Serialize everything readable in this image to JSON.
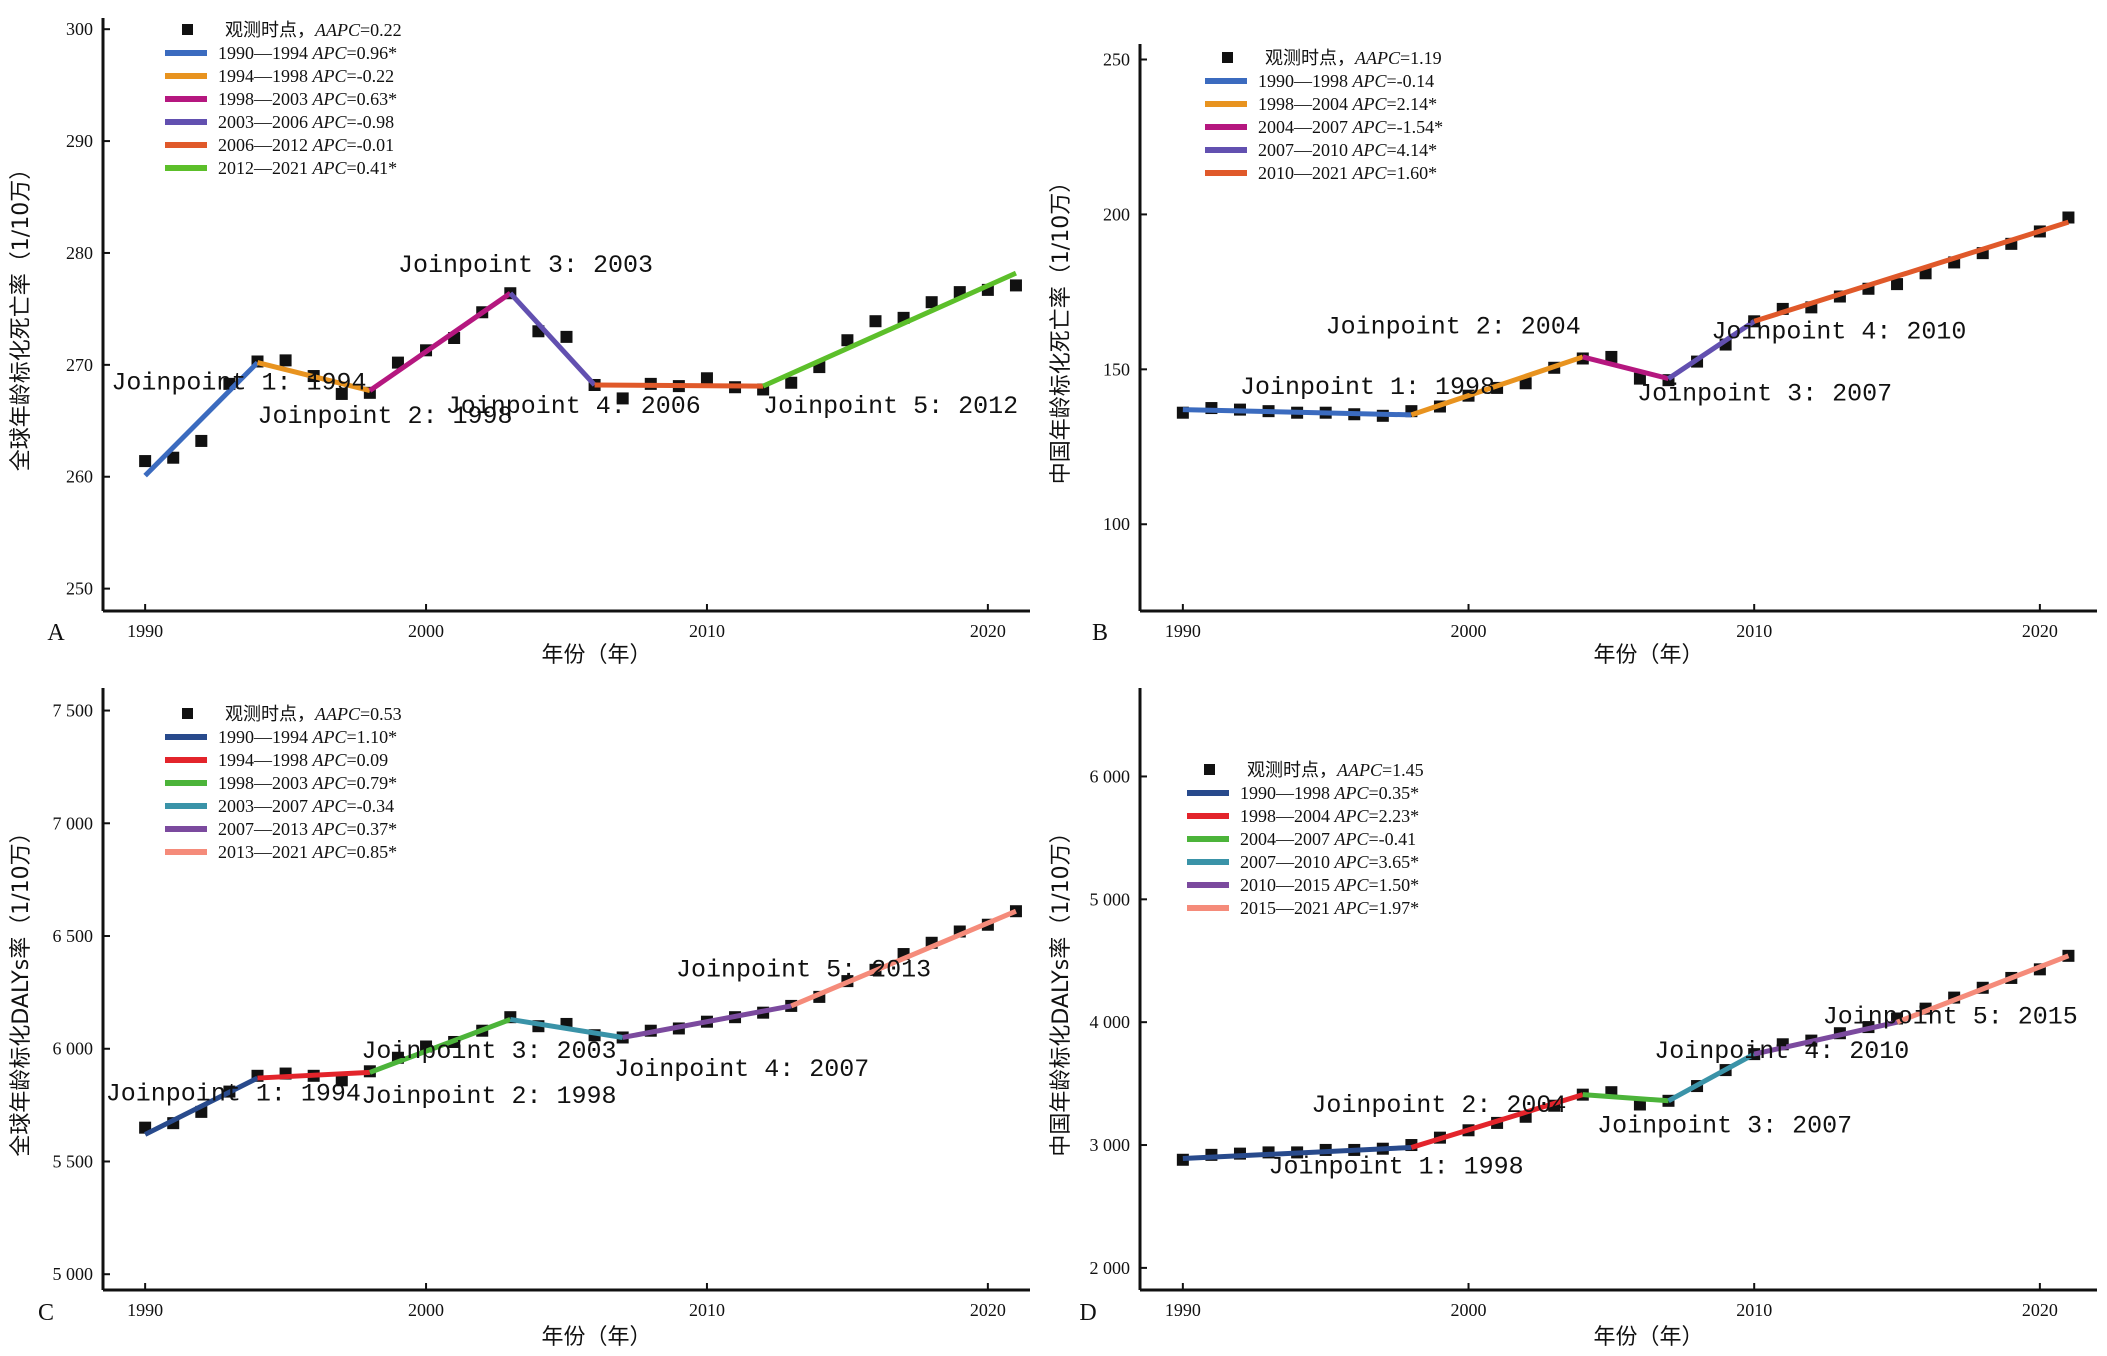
{
  "chart_data": [
    {
      "type": "line",
      "panel_label": "A",
      "title": "",
      "xlabel": "年份（年）",
      "ylabel": "全球年龄标化死亡率（1/10万）",
      "xlim": [
        1988.5,
        2021.5
      ],
      "ylim": [
        248,
        301
      ],
      "xticks": [
        1990,
        2000,
        2010,
        2020
      ],
      "yticks": [
        250,
        260,
        270,
        280,
        290,
        300
      ],
      "ytick_labels": [
        "250",
        "260",
        "270",
        "280",
        "290",
        "300"
      ],
      "legend_position": "top-left",
      "observed": {
        "name": "观测时点，",
        "stat_label": "AAPC",
        "stat_value": "=0.22",
        "x": [
          1990,
          1991,
          1992,
          1993,
          1994,
          1995,
          1996,
          1997,
          1998,
          1999,
          2000,
          2001,
          2002,
          2003,
          2004,
          2005,
          2006,
          2007,
          2008,
          2009,
          2010,
          2011,
          2012,
          2013,
          2014,
          2015,
          2016,
          2017,
          2018,
          2019,
          2020,
          2021
        ],
        "y": [
          261.4,
          261.7,
          263.2,
          268.3,
          270.3,
          270.4,
          269.0,
          267.4,
          267.5,
          270.2,
          271.3,
          272.4,
          274.7,
          276.4,
          273.0,
          272.5,
          268.2,
          267.0,
          268.3,
          268.1,
          268.8,
          268.0,
          267.8,
          268.4,
          269.8,
          272.2,
          273.9,
          274.2,
          275.6,
          276.5,
          276.7,
          277.1
        ]
      },
      "segments": [
        {
          "range": "1990—1994",
          "apc": "=0.96*",
          "color": "#3b6bbf",
          "x": [
            1990,
            1994
          ],
          "y": [
            260.1,
            270.2
          ]
        },
        {
          "range": "1994—1998",
          "apc": "=-0.22",
          "color": "#e8931f",
          "x": [
            1994,
            1998
          ],
          "y": [
            270.2,
            267.7
          ]
        },
        {
          "range": "1998—2003",
          "apc": "=0.63*",
          "color": "#b5177f",
          "x": [
            1998,
            2003
          ],
          "y": [
            267.7,
            276.4
          ]
        },
        {
          "range": "2003—2006",
          "apc": "=-0.98",
          "color": "#6250b0",
          "x": [
            2003,
            2006
          ],
          "y": [
            276.4,
            268.2
          ]
        },
        {
          "range": "2006—2012",
          "apc": "=-0.01",
          "color": "#e0592a",
          "x": [
            2006,
            2012
          ],
          "y": [
            268.2,
            268.1
          ]
        },
        {
          "range": "2012—2021",
          "apc": "=0.41*",
          "color": "#5cbf2a",
          "x": [
            2012,
            2021
          ],
          "y": [
            268.1,
            278.2
          ]
        }
      ],
      "annotations": [
        {
          "text": "Joinpoint 1: 1994",
          "x": 1988.8,
          "y": 267.8
        },
        {
          "text": "Joinpoint 2: 1998",
          "x": 1994.0,
          "y": 264.8
        },
        {
          "text": "Joinpoint 3: 2003",
          "x": 1999.0,
          "y": 278.3
        },
        {
          "text": "Joinpoint 4: 2006",
          "x": 2000.7,
          "y": 265.7
        },
        {
          "text": "Joinpoint 5: 2012",
          "x": 2012.0,
          "y": 265.7
        }
      ]
    },
    {
      "type": "line",
      "panel_label": "B",
      "title": "",
      "xlabel": "年份（年）",
      "ylabel": "中国年龄标化死亡率（1/10万）",
      "xlim": [
        1988.5,
        2022
      ],
      "ylim": [
        72,
        255
      ],
      "xticks": [
        1990,
        2000,
        2010,
        2020
      ],
      "yticks": [
        100,
        150,
        200,
        250
      ],
      "ytick_labels": [
        "100",
        "150",
        "200",
        "250"
      ],
      "legend_position": "top-left",
      "observed": {
        "name": "观测时点，",
        "stat_label": "AAPC",
        "stat_value": "=1.19",
        "x": [
          1990,
          1991,
          1992,
          1993,
          1994,
          1995,
          1996,
          1997,
          1998,
          1999,
          2000,
          2001,
          2002,
          2003,
          2004,
          2005,
          2006,
          2007,
          2008,
          2009,
          2010,
          2011,
          2012,
          2013,
          2014,
          2015,
          2016,
          2017,
          2018,
          2019,
          2020,
          2021
        ],
        "y": [
          136.0,
          137.5,
          137.0,
          136.5,
          136.0,
          136.0,
          135.5,
          135.0,
          136.5,
          138.0,
          141.5,
          144.0,
          145.5,
          150.5,
          153.5,
          154.0,
          147.0,
          146.5,
          152.5,
          158.0,
          165.5,
          169.5,
          170.0,
          173.5,
          176.0,
          177.5,
          181.0,
          184.5,
          187.5,
          190.5,
          194.5,
          199.0
        ]
      },
      "segments": [
        {
          "range": "1990—1998",
          "apc": "=-0.14",
          "color": "#3b6bbf",
          "x": [
            1990,
            1998
          ],
          "y": [
            137.0,
            135.3
          ]
        },
        {
          "range": "1998—2004",
          "apc": "=2.14*",
          "color": "#e8931f",
          "x": [
            1998,
            2004
          ],
          "y": [
            135.3,
            154.0
          ]
        },
        {
          "range": "2004—2007",
          "apc": "=-1.54*",
          "color": "#b5177f",
          "x": [
            2004,
            2007
          ],
          "y": [
            154.0,
            147.0
          ]
        },
        {
          "range": "2007—2010",
          "apc": "=4.14*",
          "color": "#6250b0",
          "x": [
            2007,
            2010
          ],
          "y": [
            147.0,
            165.5
          ]
        },
        {
          "range": "2010—2021",
          "apc": "=1.60*",
          "color": "#e0592a",
          "x": [
            2010,
            2021
          ],
          "y": [
            165.5,
            197.5
          ]
        }
      ],
      "annotations": [
        {
          "text": "Joinpoint 1: 1998",
          "x": 1992.0,
          "y": 142.0
        },
        {
          "text": "Joinpoint 2: 2004",
          "x": 1995.0,
          "y": 161.5
        },
        {
          "text": "Joinpoint 3: 2007",
          "x": 2005.9,
          "y": 140.0
        },
        {
          "text": "Joinpoint 4: 2010",
          "x": 2008.5,
          "y": 160.0
        }
      ]
    },
    {
      "type": "line",
      "panel_label": "C",
      "title": "",
      "xlabel": "年份（年）",
      "ylabel": "全球年龄标化DALYs率（1/10万）",
      "xlim": [
        1988.5,
        2021.5
      ],
      "ylim": [
        4930,
        7600
      ],
      "xticks": [
        1990,
        2000,
        2010,
        2020
      ],
      "yticks": [
        5000,
        5500,
        6000,
        6500,
        7000,
        7500
      ],
      "ytick_labels": [
        "5 000",
        "5 500",
        "6 000",
        "6 500",
        "7 000",
        "7 500"
      ],
      "legend_position": "top-left",
      "observed": {
        "name": "观测时点，",
        "stat_label": "AAPC",
        "stat_value": "=0.53",
        "x": [
          1990,
          1991,
          1992,
          1993,
          1994,
          1995,
          1996,
          1997,
          1998,
          1999,
          2000,
          2001,
          2002,
          2003,
          2004,
          2005,
          2006,
          2007,
          2008,
          2009,
          2010,
          2011,
          2012,
          2013,
          2014,
          2015,
          2016,
          2017,
          2018,
          2019,
          2020,
          2021
        ],
        "y": [
          5650,
          5670,
          5720,
          5810,
          5880,
          5890,
          5880,
          5860,
          5900,
          5960,
          6010,
          6030,
          6080,
          6140,
          6100,
          6110,
          6060,
          6050,
          6080,
          6090,
          6120,
          6140,
          6160,
          6190,
          6230,
          6300,
          6350,
          6420,
          6470,
          6520,
          6550,
          6610
        ]
      },
      "segments": [
        {
          "range": "1990—1994",
          "apc": "=1.10*",
          "color": "#284a8c",
          "x": [
            1990,
            1994
          ],
          "y": [
            5620,
            5870
          ]
        },
        {
          "range": "1994—1998",
          "apc": "=0.09",
          "color": "#e3242b",
          "x": [
            1994,
            1998
          ],
          "y": [
            5870,
            5895
          ]
        },
        {
          "range": "1998—2003",
          "apc": "=0.79*",
          "color": "#4cb43a",
          "x": [
            1998,
            2003
          ],
          "y": [
            5895,
            6130
          ]
        },
        {
          "range": "2003—2007",
          "apc": "=-0.34",
          "color": "#3a93a8",
          "x": [
            2003,
            2007
          ],
          "y": [
            6130,
            6050
          ]
        },
        {
          "range": "2007—2013",
          "apc": "=0.37*",
          "color": "#7b4a9e",
          "x": [
            2007,
            2013
          ],
          "y": [
            6050,
            6190
          ]
        },
        {
          "range": "2013—2021",
          "apc": "=0.85*",
          "color": "#f58b7a",
          "x": [
            2013,
            2021
          ],
          "y": [
            6190,
            6610
          ]
        }
      ],
      "annotations": [
        {
          "text": "Joinpoint 1: 1994",
          "x": 1988.6,
          "y": 5770
        },
        {
          "text": "Joinpoint 2: 1998",
          "x": 1997.7,
          "y": 5760
        },
        {
          "text": "Joinpoint 3: 2003",
          "x": 1997.7,
          "y": 5960
        },
        {
          "text": "Joinpoint 4: 2007",
          "x": 2006.7,
          "y": 5880
        },
        {
          "text": "Joinpoint 5: 2013",
          "x": 2008.9,
          "y": 6320
        }
      ]
    },
    {
      "type": "line",
      "panel_label": "D",
      "title": "",
      "xlabel": "年份（年）",
      "ylabel": "中国年龄标化DALYs率（1/10万）",
      "xlim": [
        1988.5,
        2022
      ],
      "ylim": [
        1820,
        6720
      ],
      "xticks": [
        1990,
        2000,
        2010,
        2020
      ],
      "yticks": [
        2000,
        3000,
        4000,
        5000,
        6000
      ],
      "ytick_labels": [
        "2 000",
        "3 000",
        "4 000",
        "5 000",
        "6 000"
      ],
      "legend_position": "top-left",
      "observed": {
        "name": "观测时点，",
        "stat_label": "AAPC",
        "stat_value": "=1.45",
        "x": [
          1990,
          1991,
          1992,
          1993,
          1994,
          1995,
          1996,
          1997,
          1998,
          1999,
          2000,
          2001,
          2002,
          2003,
          2004,
          2005,
          2006,
          2007,
          2008,
          2009,
          2010,
          2011,
          2012,
          2013,
          2014,
          2015,
          2016,
          2017,
          2018,
          2019,
          2020,
          2021
        ],
        "y": [
          2880,
          2920,
          2930,
          2940,
          2940,
          2960,
          2960,
          2970,
          3000,
          3060,
          3120,
          3180,
          3230,
          3320,
          3410,
          3430,
          3330,
          3360,
          3480,
          3610,
          3740,
          3820,
          3850,
          3910,
          3960,
          4030,
          4110,
          4200,
          4280,
          4360,
          4430,
          4540
        ]
      },
      "segments": [
        {
          "range": "1990—1998",
          "apc": "=0.35*",
          "color": "#284a8c",
          "x": [
            1990,
            1998
          ],
          "y": [
            2890,
            2980
          ]
        },
        {
          "range": "1998—2004",
          "apc": "=2.23*",
          "color": "#e3242b",
          "x": [
            1998,
            2004
          ],
          "y": [
            2980,
            3410
          ]
        },
        {
          "range": "2004—2007",
          "apc": "=-0.41",
          "color": "#4cb43a",
          "x": [
            2004,
            2007
          ],
          "y": [
            3410,
            3360
          ]
        },
        {
          "range": "2007—2010",
          "apc": "=3.65*",
          "color": "#3a93a8",
          "x": [
            2007,
            2010
          ],
          "y": [
            3360,
            3740
          ]
        },
        {
          "range": "2010—2015",
          "apc": "=1.50*",
          "color": "#7b4a9e",
          "x": [
            2010,
            2015
          ],
          "y": [
            3740,
            4000
          ]
        },
        {
          "range": "2015—2021",
          "apc": "=1.97*",
          "color": "#f58b7a",
          "x": [
            2015,
            2021
          ],
          "y": [
            4000,
            4540
          ]
        }
      ],
      "annotations": [
        {
          "text": "Joinpoint 1: 1998",
          "x": 1993.0,
          "y": 2770
        },
        {
          "text": "Joinpoint 2: 2004",
          "x": 1994.5,
          "y": 3270
        },
        {
          "text": "Joinpoint 3: 2007",
          "x": 2004.5,
          "y": 3100
        },
        {
          "text": "Joinpoint 4: 2010",
          "x": 2006.5,
          "y": 3710
        },
        {
          "text": "Joinpoint 5: 2015",
          "x": 2012.4,
          "y": 3990
        }
      ]
    }
  ]
}
